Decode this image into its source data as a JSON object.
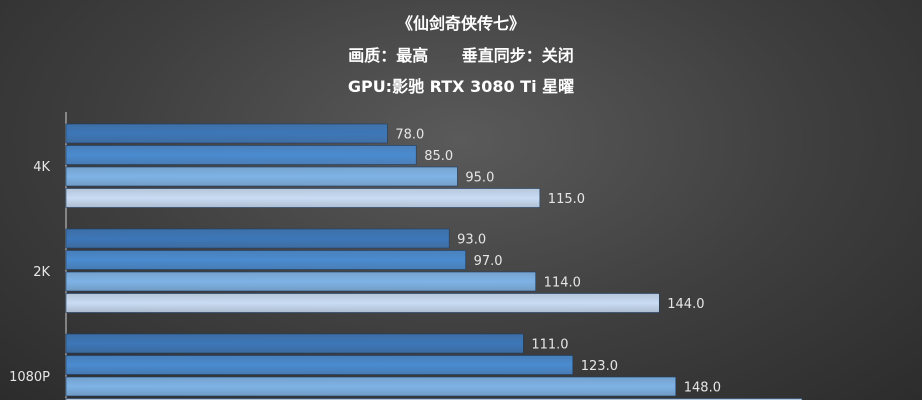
{
  "header": {
    "title": "《仙剑奇侠传七》",
    "subtitle": "画质：最高      垂直同步：关闭",
    "gpu_line": "GPU:影驰 RTX 3080 Ti 星曜"
  },
  "colors": {
    "series": [
      "#3d77b8",
      "#4a8bd0",
      "#7eb3e6",
      "#c9dcf4"
    ],
    "text_light": "#e6e6e6",
    "axis": "#d0d0d0"
  },
  "chart_data": {
    "type": "bar",
    "orientation": "horizontal",
    "title": "《仙剑奇侠传七》",
    "categories": [
      "4K",
      "2K",
      "1080P"
    ],
    "series": [
      {
        "values": [
          78.0,
          93.0,
          111.0
        ]
      },
      {
        "values": [
          85.0,
          97.0,
          123.0
        ]
      },
      {
        "values": [
          95.0,
          114.0,
          148.0
        ]
      },
      {
        "values": [
          115.0,
          144.0,
          null
        ]
      }
    ],
    "value_labels": [
      [
        "78.0",
        "85.0",
        "95.0",
        "115.0"
      ],
      [
        "93.0",
        "97.0",
        "114.0",
        "144.0"
      ],
      [
        "111.0",
        "123.0",
        "148.0"
      ]
    ],
    "xlim": [
      0,
      180
    ],
    "grid": false,
    "legend": "none"
  }
}
